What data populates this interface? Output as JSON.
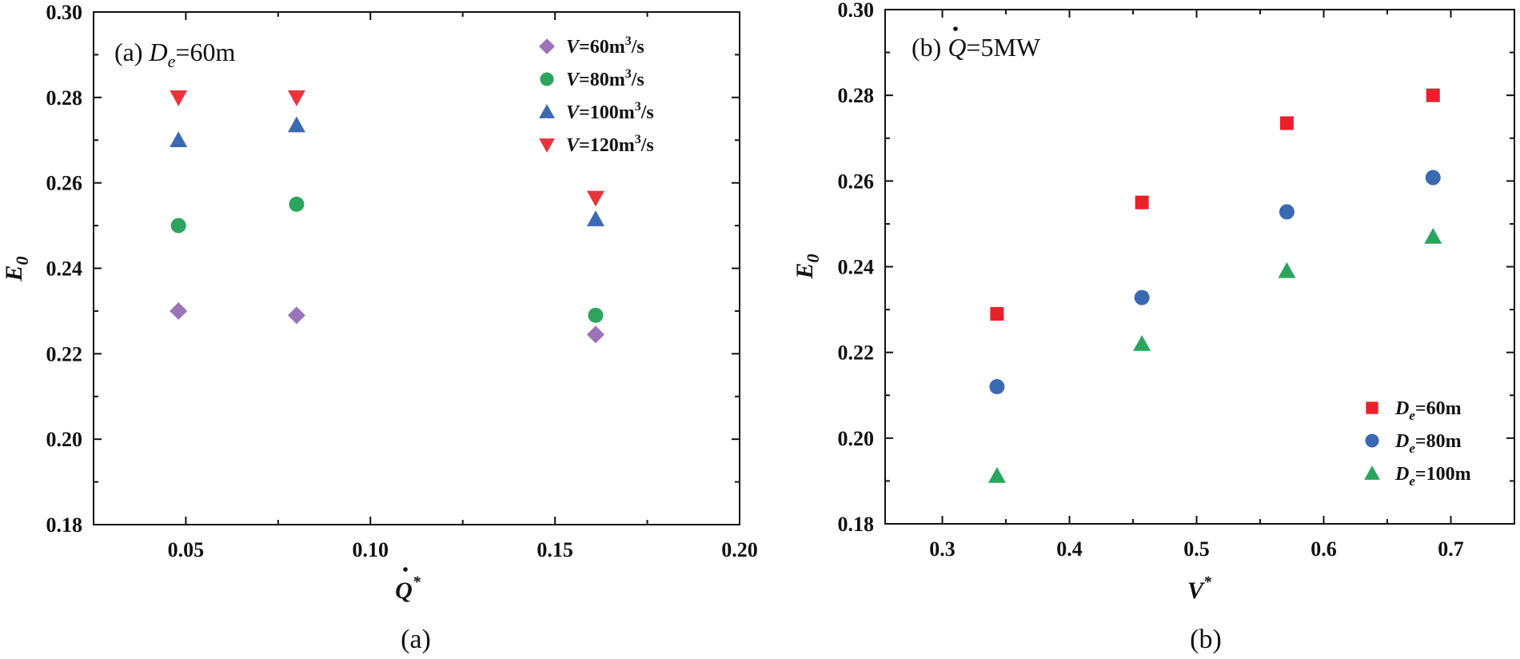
{
  "chart_data": [
    {
      "type": "scatter",
      "panel_label": "(a)",
      "title_prefix": "(a) ",
      "title_var": "D",
      "title_sub": "e",
      "title_rest": "=60m",
      "xlabel": "Q",
      "xlabel_sup": "*",
      "xlabel_dot": true,
      "ylabel": "E",
      "ylabel_sub": "0",
      "xlim": [
        0.025,
        0.2
      ],
      "ylim": [
        0.18,
        0.3
      ],
      "xticks": [
        0.05,
        0.1,
        0.15,
        0.2
      ],
      "xtick_labels": [
        "0.05",
        "0.10",
        "0.15",
        "0.20"
      ],
      "yticks": [
        0.18,
        0.2,
        0.22,
        0.24,
        0.26,
        0.28,
        0.3
      ],
      "ytick_labels": [
        "0.18",
        "0.20",
        "0.22",
        "0.24",
        "0.26",
        "0.28",
        "0.30"
      ],
      "legend_position": "top-right",
      "series": [
        {
          "name_var": "V",
          "name_rest": "=60m",
          "name_sup": "3",
          "name_end": "/s",
          "marker": "diamond",
          "color": "#9B73B8",
          "x": [
            0.048,
            0.08,
            0.161
          ],
          "y": [
            0.23,
            0.229,
            0.2245
          ]
        },
        {
          "name_var": "V",
          "name_rest": "=80m",
          "name_sup": "3",
          "name_end": "/s",
          "marker": "circle",
          "color": "#2BA55E",
          "x": [
            0.048,
            0.08,
            0.161
          ],
          "y": [
            0.25,
            0.255,
            0.229
          ]
        },
        {
          "name_var": "V",
          "name_rest": "=100m",
          "name_sup": "3",
          "name_end": "/s",
          "marker": "triangle-up",
          "color": "#3A69B3",
          "x": [
            0.048,
            0.08,
            0.161
          ],
          "y": [
            0.27,
            0.2735,
            0.2515
          ]
        },
        {
          "name_var": "V",
          "name_rest": "=120m",
          "name_sup": "3",
          "name_end": "/s",
          "marker": "triangle-down",
          "color": "#E8353B",
          "x": [
            0.048,
            0.08,
            0.161
          ],
          "y": [
            0.28,
            0.28,
            0.2565
          ]
        }
      ]
    },
    {
      "type": "scatter",
      "panel_label": "(b)",
      "title_prefix": "(b) ",
      "title_var": "Q",
      "title_sub": "",
      "title_rest": "=5MW",
      "title_dot": true,
      "xlabel": "V",
      "xlabel_sup": "*",
      "xlabel_dot": false,
      "ylabel": "E",
      "ylabel_sub": "0",
      "xlim": [
        0.255,
        0.75
      ],
      "ylim": [
        0.18,
        0.3
      ],
      "xticks": [
        0.3,
        0.4,
        0.5,
        0.6,
        0.7
      ],
      "xtick_labels": [
        "0.3",
        "0.4",
        "0.5",
        "0.6",
        "0.7"
      ],
      "yticks": [
        0.18,
        0.2,
        0.22,
        0.24,
        0.26,
        0.28,
        0.3
      ],
      "ytick_labels": [
        "0.18",
        "0.20",
        "0.22",
        "0.24",
        "0.26",
        "0.28",
        "0.30"
      ],
      "legend_position": "bottom-right",
      "series": [
        {
          "name_var": "D",
          "name_sub": "e",
          "name_rest": "=60m",
          "marker": "square",
          "color": "#E8212B",
          "x": [
            0.343,
            0.457,
            0.571,
            0.686
          ],
          "y": [
            0.229,
            0.255,
            0.2735,
            0.28
          ]
        },
        {
          "name_var": "D",
          "name_sub": "e",
          "name_rest": "=80m",
          "marker": "circle",
          "color": "#3A69B3",
          "x": [
            0.343,
            0.457,
            0.571,
            0.686
          ],
          "y": [
            0.212,
            0.2328,
            0.2528,
            0.2608
          ]
        },
        {
          "name_var": "D",
          "name_sub": "e",
          "name_rest": "=100m",
          "marker": "triangle-up",
          "color": "#2BA55E",
          "x": [
            0.343,
            0.457,
            0.571,
            0.686
          ],
          "y": [
            0.1912,
            0.222,
            0.239,
            0.247
          ]
        }
      ]
    }
  ]
}
